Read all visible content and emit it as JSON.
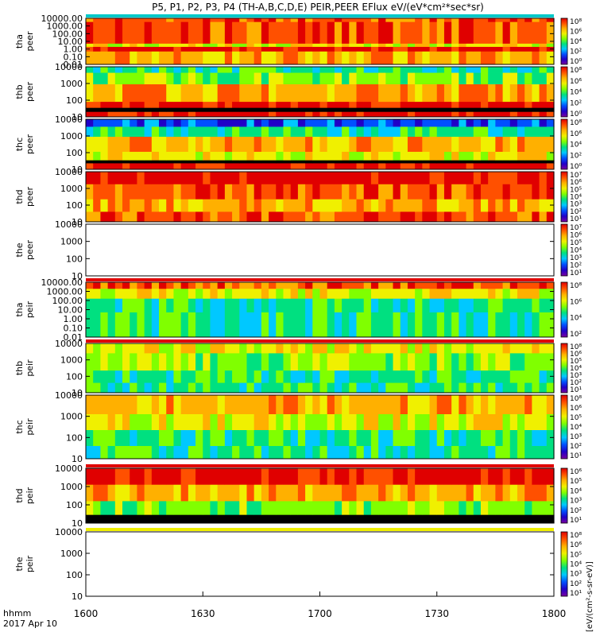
{
  "title": "P5, P1, P2, P3, P4 (TH-A,B,C,D,E) PEIR,PEER EFlux eV/(eV*cm²*sec*sr)",
  "x_axis": {
    "label_line1": "hhmm",
    "label_line2": "2017 Apr 10",
    "ticks": [
      "1600",
      "1630",
      "1700",
      "1730",
      "1800"
    ]
  },
  "colorbar_label": "[eV/(cm²-s-sr-eV)]",
  "chart_data": {
    "type": "heatmap",
    "x": {
      "start": "16:00",
      "end": "18:00",
      "tick_labels": [
        "1600",
        "1630",
        "1700",
        "1730",
        "1800"
      ]
    },
    "y_scale": "log",
    "z_scale": "log",
    "colormap": [
      "#7a00a0",
      "#2000c8",
      "#0050ff",
      "#00c8ff",
      "#00e080",
      "#80ff00",
      "#f0f000",
      "#ffb000",
      "#ff5000",
      "#e00000"
    ],
    "panels": [
      {
        "id": "tha-peer",
        "label": [
          "tha",
          "peer"
        ],
        "ymin": 0.01,
        "ymax": 10000,
        "yticks": [
          "10000.00",
          "1000.00",
          "100.00",
          "10.00",
          "1.00",
          "0.10",
          "0.01"
        ],
        "cbar_ticks": [
          "10⁸",
          "10⁶",
          "10⁴",
          "10²",
          "10⁰"
        ],
        "top_strip": "#00c8c8"
      },
      {
        "id": "thb-peer",
        "label": [
          "thb",
          "peer"
        ],
        "ymin": 10,
        "ymax": 10000,
        "yticks": [
          "10000",
          "1000",
          "100",
          "10"
        ],
        "cbar_ticks": [
          "10⁸",
          "10⁶",
          "10⁴",
          "10²",
          "10⁰"
        ],
        "top_strip": null
      },
      {
        "id": "thc-peer",
        "label": [
          "thc",
          "peer"
        ],
        "ymin": 10,
        "ymax": 10000,
        "yticks": [
          "10000",
          "1000",
          "100",
          "10"
        ],
        "cbar_ticks": [
          "10⁸",
          "10⁶",
          "10⁴",
          "10²",
          "10⁰"
        ],
        "top_strip": null
      },
      {
        "id": "thd-peer",
        "label": [
          "thd",
          "peer"
        ],
        "ymin": 10,
        "ymax": 10000,
        "yticks": [
          "10000",
          "1000",
          "100",
          "10"
        ],
        "cbar_ticks": [
          "10⁷",
          "10⁶",
          "10⁵",
          "10⁴",
          "10³",
          "10²",
          "10¹"
        ],
        "top_strip": null
      },
      {
        "id": "the-peer",
        "label": [
          "the",
          "peer"
        ],
        "ymin": 10,
        "ymax": 10000,
        "yticks": [
          "10000",
          "1000",
          "100",
          "10"
        ],
        "cbar_ticks": [
          "10⁷",
          "10⁶",
          "10⁵",
          "10⁴",
          "10³",
          "10²",
          "10¹"
        ],
        "top_strip": null,
        "empty": true
      },
      {
        "id": "tha-peir",
        "label": [
          "tha",
          "peir"
        ],
        "ymin": 0.01,
        "ymax": 10000,
        "yticks": [
          "10000.00",
          "1000.00",
          "100.00",
          "10.00",
          "1.00",
          "0.10",
          "0.01"
        ],
        "cbar_ticks": [
          "10⁸",
          "10⁶",
          "10⁴",
          "10²"
        ],
        "top_strip": "#e00000"
      },
      {
        "id": "thb-peir",
        "label": [
          "thb",
          "peir"
        ],
        "ymin": 10,
        "ymax": 10000,
        "yticks": [
          "10000",
          "1000",
          "100",
          "10"
        ],
        "cbar_ticks": [
          "10⁸",
          "10⁶",
          "10⁵",
          "10⁴",
          "10³",
          "10²",
          "10¹"
        ],
        "top_strip": "#e00000"
      },
      {
        "id": "thc-peir",
        "label": [
          "thc",
          "peir"
        ],
        "ymin": 10,
        "ymax": 10000,
        "yticks": [
          "10000",
          "1000",
          "100",
          "10"
        ],
        "cbar_ticks": [
          "10⁸",
          "10⁶",
          "10⁵",
          "10⁴",
          "10³",
          "10²",
          "10¹"
        ],
        "top_strip": null
      },
      {
        "id": "thd-peir",
        "label": [
          "thd",
          "peir"
        ],
        "ymin": 10,
        "ymax": 10000,
        "yticks": [
          "10000",
          "1000",
          "100",
          "10"
        ],
        "cbar_ticks": [
          "10⁶",
          "10⁵",
          "10⁴",
          "10³",
          "10²",
          "10¹"
        ],
        "top_strip": "#e00000"
      },
      {
        "id": "the-peir",
        "label": [
          "the",
          "peir"
        ],
        "ymin": 10,
        "ymax": 10000,
        "yticks": [
          "10000",
          "1000",
          "100",
          "10"
        ],
        "cbar_ticks": [
          "10⁸",
          "10⁶",
          "10⁵",
          "10⁴",
          "10³",
          "10²",
          "10¹"
        ],
        "top_strip": "#f0f000",
        "empty": true
      }
    ]
  }
}
